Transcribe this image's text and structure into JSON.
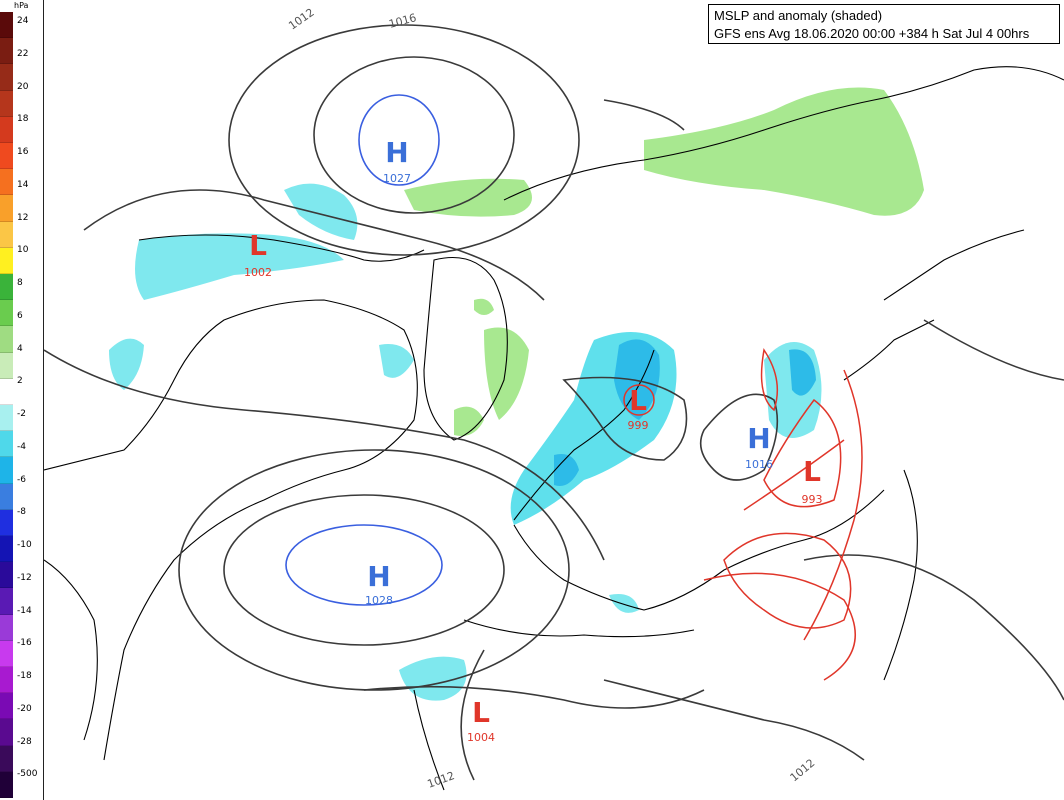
{
  "title": {
    "line1": "MSLP and anomaly (shaded)",
    "line2": "GFS ens Avg 18.06.2020 00:00 +384 h Sat Jul 4 00hrs"
  },
  "legend": {
    "unit": "hPa",
    "ticks": [
      "24",
      "22",
      "20",
      "18",
      "16",
      "14",
      "12",
      "10",
      "8",
      "6",
      "4",
      "2",
      "-2",
      "-4",
      "-6",
      "-8",
      "-10",
      "-12",
      "-14",
      "-16",
      "-18",
      "-20",
      "-28",
      "-500"
    ],
    "colors": [
      "#5a0a0a",
      "#7a1d12",
      "#962b18",
      "#b5361c",
      "#d43a1e",
      "#ef4a1f",
      "#f5701f",
      "#f9a02a",
      "#fbc646",
      "#fff020",
      "#3ab33a",
      "#6acc4e",
      "#9fdc82",
      "#c9ecb8",
      "#ffffff",
      "#a8f0ef",
      "#4fd8ea",
      "#1eb4e8",
      "#3a7ee0",
      "#1f2fe0",
      "#1414b4",
      "#2a0a9a",
      "#5a1ab4",
      "#9a3ad8",
      "#c83aee",
      "#a81ad0",
      "#7a0ab4",
      "#5a0a90",
      "#3a0a5a",
      "#200038"
    ]
  },
  "pressure_centers": [
    {
      "type": "H",
      "value": "1027",
      "color": "#3a6fd8"
    },
    {
      "type": "L",
      "value": "1002",
      "color": "#e0362a"
    },
    {
      "type": "L",
      "value": "999",
      "color": "#e0362a"
    },
    {
      "type": "H",
      "value": "1016",
      "color": "#3a6fd8"
    },
    {
      "type": "L",
      "value": "993",
      "color": "#e0362a"
    },
    {
      "type": "H",
      "value": "1028",
      "color": "#3a6fd8"
    },
    {
      "type": "L",
      "value": "1004",
      "color": "#e0362a"
    }
  ],
  "isobar_labels": [
    "1012",
    "1016",
    "1012",
    "1012"
  ]
}
